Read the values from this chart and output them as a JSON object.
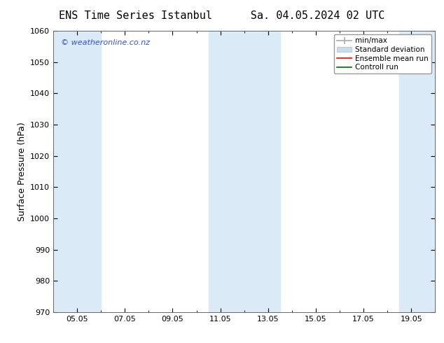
{
  "title": "ENS Time Series Istanbul",
  "title2": "Sa. 04.05.2024 02 UTC",
  "ylabel": "Surface Pressure (hPa)",
  "ylim": [
    970,
    1060
  ],
  "yticks": [
    970,
    980,
    990,
    1000,
    1010,
    1020,
    1030,
    1040,
    1050,
    1060
  ],
  "xlim_start": 4.0,
  "xlim_end": 20.0,
  "xtick_labels": [
    "05.05",
    "07.05",
    "09.05",
    "11.05",
    "13.05",
    "15.05",
    "17.05",
    "19.05"
  ],
  "xtick_positions": [
    5.0,
    7.0,
    9.0,
    11.0,
    13.0,
    15.0,
    17.0,
    19.0
  ],
  "bg_color": "#ffffff",
  "plot_bg_color": "#ffffff",
  "shaded_bands": [
    {
      "x_start": 4.0,
      "x_end": 6.0,
      "color": "#daeaf7"
    },
    {
      "x_start": 10.5,
      "x_end": 13.5,
      "color": "#daeaf7"
    },
    {
      "x_start": 18.5,
      "x_end": 20.0,
      "color": "#daeaf7"
    }
  ],
  "legend_entries": [
    {
      "label": "min/max",
      "color": "#aaaaaa",
      "type": "errorbar"
    },
    {
      "label": "Standard deviation",
      "color": "#c8d8e8",
      "type": "bar"
    },
    {
      "label": "Ensemble mean run",
      "color": "#ff0000",
      "type": "line"
    },
    {
      "label": "Controll run",
      "color": "#008000",
      "type": "line"
    }
  ],
  "watermark": "© weatheronline.co.nz",
  "watermark_color": "#3355cc",
  "title_fontsize": 11,
  "tick_fontsize": 8,
  "ylabel_fontsize": 9,
  "legend_fontsize": 7.5
}
